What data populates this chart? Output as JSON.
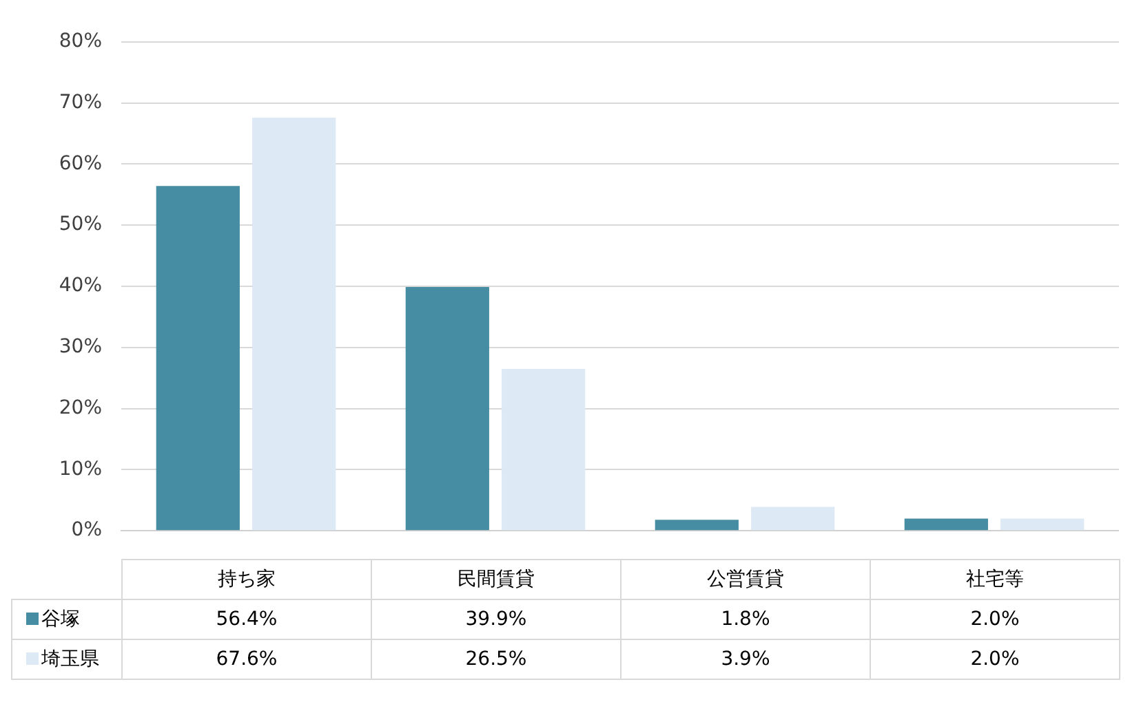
{
  "chart_data": {
    "type": "bar",
    "categories": [
      "持ち家",
      "民間賃貸",
      "公営賃貸",
      "社宅等"
    ],
    "series": [
      {
        "name": "谷塚",
        "color": "#468ca3",
        "values": [
          56.4,
          39.9,
          1.8,
          2.0
        ],
        "value_labels": [
          "56.4%",
          "39.9%",
          "1.8%",
          "2.0%"
        ]
      },
      {
        "name": "埼玉県",
        "color": "#dde9f4",
        "values": [
          67.6,
          26.5,
          3.9,
          2.0
        ],
        "value_labels": [
          "67.6%",
          "26.5%",
          "3.9%",
          "2.0%"
        ]
      }
    ],
    "ylim": [
      0,
      80
    ],
    "yticks": [
      {
        "value": 0,
        "label": "0%"
      },
      {
        "value": 10,
        "label": "10%"
      },
      {
        "value": 20,
        "label": "20%"
      },
      {
        "value": 30,
        "label": "30%"
      },
      {
        "value": 40,
        "label": "40%"
      },
      {
        "value": 50,
        "label": "50%"
      },
      {
        "value": 60,
        "label": "60%"
      },
      {
        "value": 70,
        "label": "70%"
      },
      {
        "value": 80,
        "label": "80%"
      }
    ],
    "grid": "y",
    "legend": "bottom"
  }
}
